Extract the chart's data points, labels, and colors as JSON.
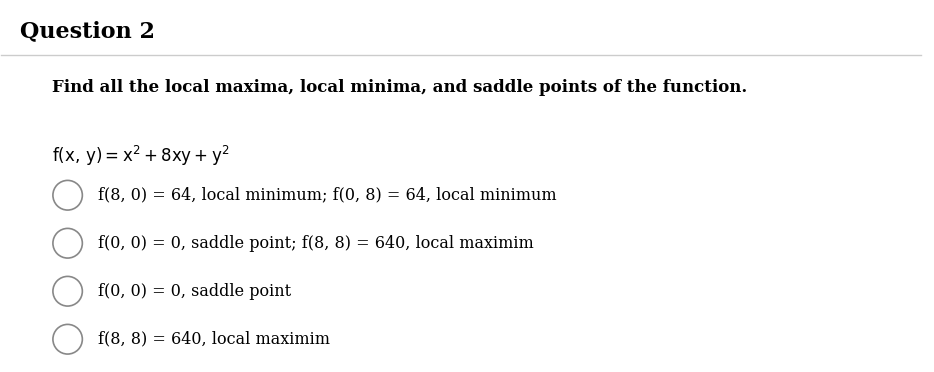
{
  "title": "Question 2",
  "instruction": "Find all the local maxima, local minima, and saddle points of the function.",
  "background_color": "#ffffff",
  "title_color": "#000000",
  "text_color": "#000000",
  "separator_color": "#cccccc",
  "options": [
    "f(8, 0) = 64, local minimum; f(0, 8) = 64, local minimum",
    "f(0, 0) = 0, saddle point; f(8, 8) = 640, local maximim",
    "f(0, 0) = 0, saddle point",
    "f(8, 8) = 640, local maximim"
  ],
  "circle_color": "#888888",
  "figsize": [
    9.34,
    3.72
  ],
  "dpi": 100
}
